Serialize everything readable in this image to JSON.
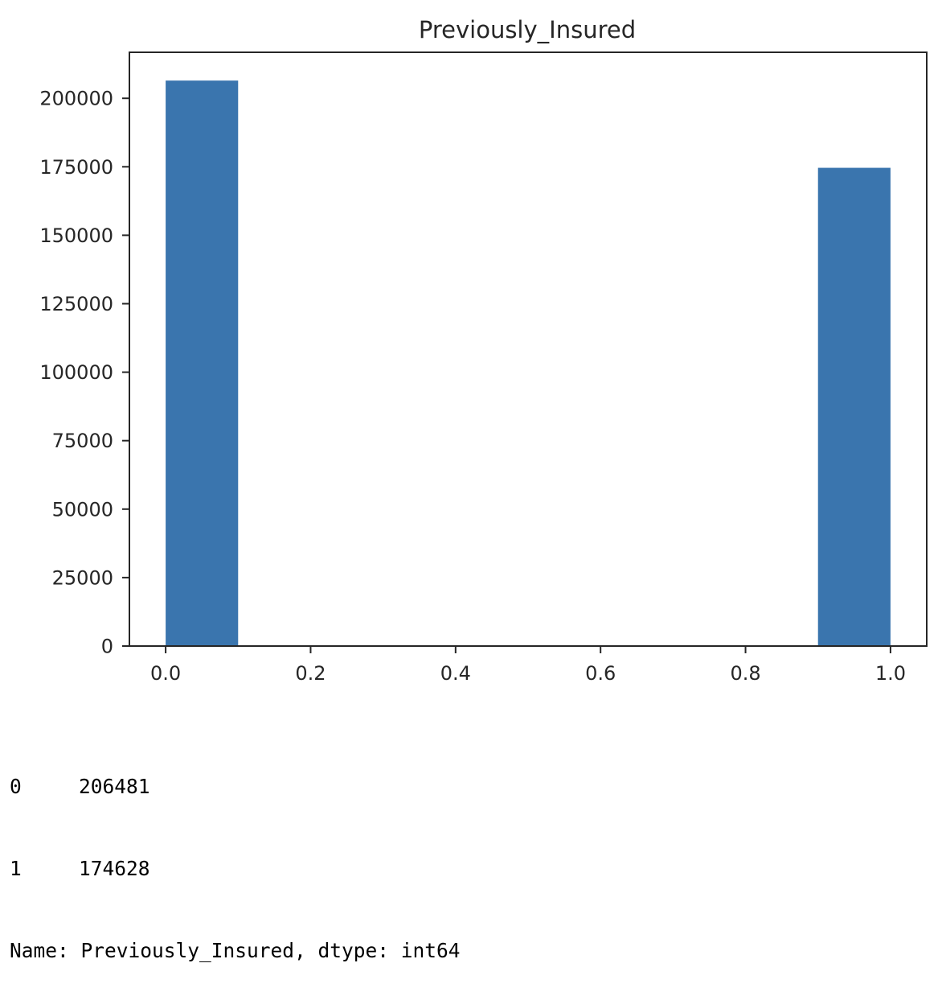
{
  "chart_data": {
    "type": "bar",
    "title": "Previously_Insured",
    "xlabel": "",
    "ylabel": "",
    "xlim": [
      -0.05,
      1.05
    ],
    "ylim": [
      0,
      216805
    ],
    "x_ticks": [
      "0.0",
      "0.2",
      "0.4",
      "0.6",
      "0.8",
      "1.0"
    ],
    "x_tick_values": [
      0,
      0.2,
      0.4,
      0.6,
      0.8,
      1.0
    ],
    "y_ticks": [
      "0",
      "25000",
      "50000",
      "75000",
      "100000",
      "125000",
      "150000",
      "175000",
      "200000"
    ],
    "y_tick_values": [
      0,
      25000,
      50000,
      75000,
      100000,
      125000,
      150000,
      175000,
      200000
    ],
    "bins": [
      {
        "x0": 0.0,
        "x1": 0.1,
        "value": 206481
      },
      {
        "x0": 0.9,
        "x1": 1.0,
        "value": 174628
      }
    ],
    "bar_color": "#3a75ae",
    "grid": false,
    "legend": "none"
  },
  "output": {
    "rows": [
      {
        "index": "0",
        "value": "206481"
      },
      {
        "index": "1",
        "value": "174628"
      }
    ],
    "footer": "Name: Previously_Insured, dtype: int64"
  }
}
